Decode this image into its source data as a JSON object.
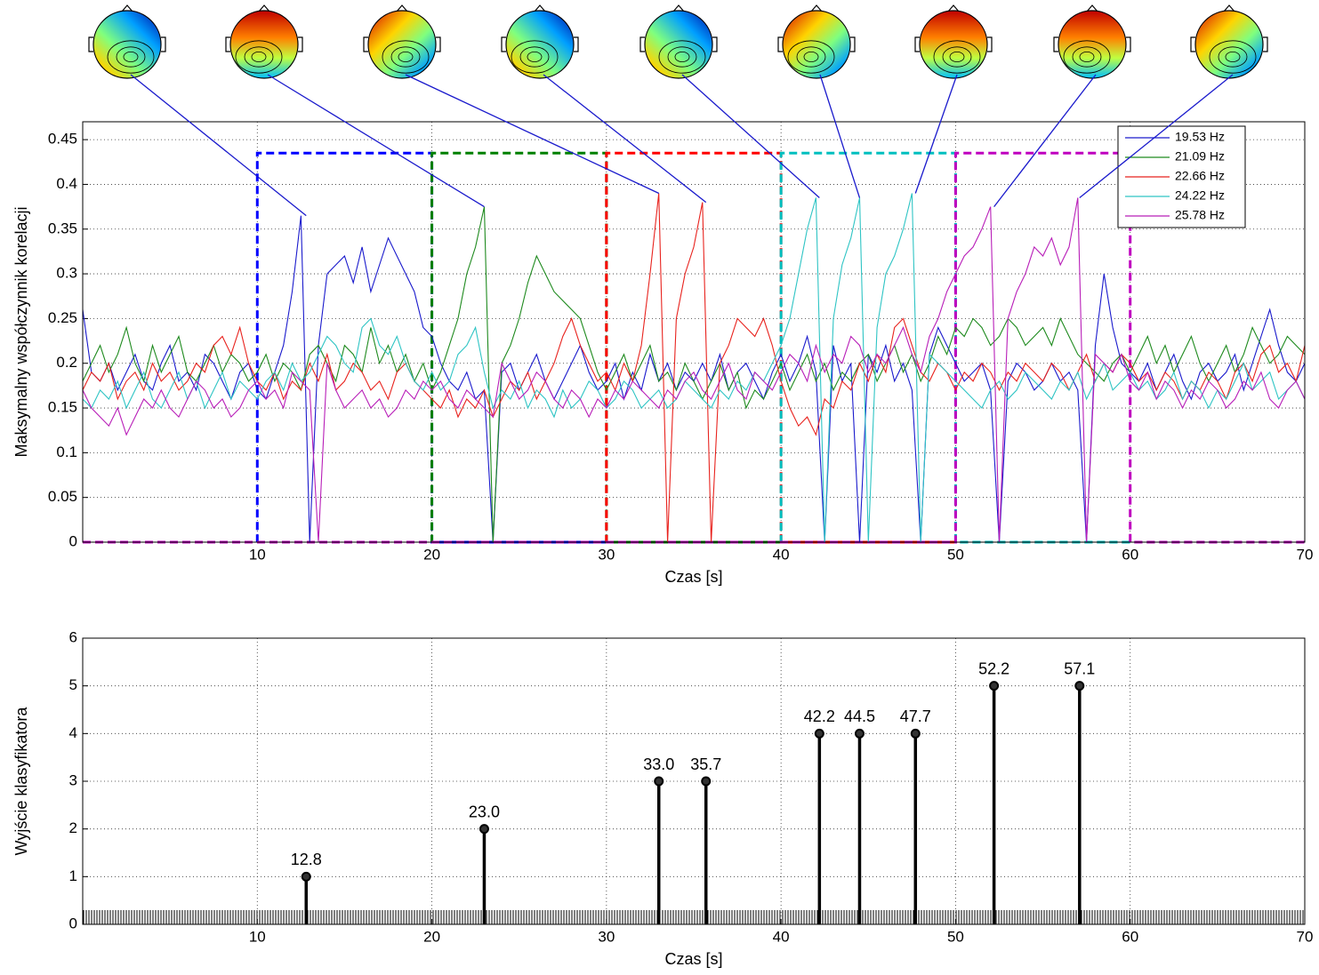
{
  "chart_data": [
    {
      "type": "line",
      "xlabel": "Czas [s]",
      "ylabel": "Maksymalny współczynnik korelacji",
      "xlim": [
        0,
        70
      ],
      "xticks": [
        10,
        20,
        30,
        40,
        50,
        60,
        70
      ],
      "ylim": [
        0,
        0.47
      ],
      "yticks": [
        0,
        0.05,
        0.1,
        0.15,
        0.2,
        0.25,
        0.3,
        0.35,
        0.4,
        0.45
      ],
      "grid": true,
      "legend": "top-right",
      "x": [
        0,
        0.5,
        1,
        1.5,
        2,
        2.5,
        3,
        3.5,
        4,
        4.5,
        5,
        5.5,
        6,
        6.5,
        7,
        7.5,
        8,
        8.5,
        9,
        9.5,
        10,
        10.5,
        11,
        11.5,
        12,
        12.5,
        13,
        13.5,
        14,
        14.5,
        15,
        15.5,
        16,
        16.5,
        17,
        17.5,
        18,
        18.5,
        19,
        19.5,
        20,
        20.5,
        21,
        21.5,
        22,
        22.5,
        23,
        23.5,
        24,
        24.5,
        25,
        25.5,
        26,
        26.5,
        27,
        27.5,
        28,
        28.5,
        29,
        29.5,
        30,
        30.5,
        31,
        31.5,
        32,
        32.5,
        33,
        33.5,
        34,
        34.5,
        35,
        35.5,
        36,
        36.5,
        37,
        37.5,
        38,
        38.5,
        39,
        39.5,
        40,
        40.5,
        41,
        41.5,
        42,
        42.5,
        43,
        43.5,
        44,
        44.5,
        45,
        45.5,
        46,
        46.5,
        47,
        47.5,
        48,
        48.5,
        49,
        49.5,
        50,
        50.5,
        51,
        51.5,
        52,
        52.5,
        53,
        53.5,
        54,
        54.5,
        55,
        55.5,
        56,
        56.5,
        57,
        57.5,
        58,
        58.5,
        59,
        59.5,
        60,
        60.5,
        61,
        61.5,
        62,
        62.5,
        63,
        63.5,
        64,
        64.5,
        65,
        65.5,
        66,
        66.5,
        67,
        67.5,
        68,
        68.5,
        69,
        69.5,
        70
      ],
      "series": [
        {
          "name": "19.53 Hz",
          "color": "#1a1acc",
          "values": [
            0.26,
            0.19,
            0.18,
            0.2,
            0.17,
            0.19,
            0.21,
            0.18,
            0.17,
            0.2,
            0.22,
            0.18,
            0.19,
            0.17,
            0.21,
            0.2,
            0.18,
            0.16,
            0.19,
            0.2,
            0.17,
            0.16,
            0.19,
            0.22,
            0.28,
            0.365,
            0,
            0.22,
            0.3,
            0.31,
            0.32,
            0.29,
            0.33,
            0.28,
            0.31,
            0.34,
            0.32,
            0.3,
            0.28,
            0.24,
            0.23,
            0.2,
            0.18,
            0.17,
            0.19,
            0.16,
            0.17,
            0,
            0.19,
            0.2,
            0.17,
            0.19,
            0.21,
            0.18,
            0.16,
            0.18,
            0.2,
            0.22,
            0.19,
            0.17,
            0.18,
            0.2,
            0.16,
            0.19,
            0.17,
            0.21,
            0.18,
            0.2,
            0.17,
            0.19,
            0.18,
            0.2,
            0.18,
            0.21,
            0.17,
            0.19,
            0.2,
            0.18,
            0.16,
            0.19,
            0.21,
            0.18,
            0.2,
            0.23,
            0.19,
            0,
            0.22,
            0.18,
            0.2,
            0,
            0.21,
            0.19,
            0.22,
            0.18,
            0.2,
            0.17,
            0,
            0.21,
            0.24,
            0.22,
            0.2,
            0.18,
            0.19,
            0.2,
            0.17,
            0,
            0.18,
            0.2,
            0.19,
            0.17,
            0.18,
            0.2,
            0.18,
            0.19,
            0.17,
            0,
            0.22,
            0.3,
            0.24,
            0.2,
            0.19,
            0.18,
            0.2,
            0.17,
            0.19,
            0.21,
            0.18,
            0.16,
            0.19,
            0.2,
            0.18,
            0.19,
            0.21,
            0.17,
            0.2,
            0.23,
            0.26,
            0.22,
            0.19,
            0.18,
            0.2
          ]
        },
        {
          "name": "21.09 Hz",
          "color": "#1e8a1e",
          "values": [
            0.18,
            0.2,
            0.22,
            0.19,
            0.21,
            0.24,
            0.2,
            0.18,
            0.22,
            0.19,
            0.21,
            0.23,
            0.19,
            0.18,
            0.2,
            0.22,
            0.19,
            0.21,
            0.2,
            0.18,
            0.19,
            0.21,
            0.18,
            0.2,
            0.19,
            0.17,
            0.21,
            0.22,
            0.2,
            0.18,
            0.22,
            0.21,
            0.19,
            0.24,
            0.2,
            0.22,
            0.19,
            0.21,
            0.18,
            0.2,
            0.17,
            0.19,
            0.22,
            0.25,
            0.3,
            0.33,
            0.375,
            0,
            0.2,
            0.22,
            0.25,
            0.29,
            0.32,
            0.3,
            0.28,
            0.27,
            0.26,
            0.25,
            0.22,
            0.19,
            0.17,
            0.19,
            0.21,
            0.18,
            0.2,
            0.22,
            0.18,
            0.19,
            0.17,
            0.2,
            0.18,
            0.16,
            0.18,
            0.2,
            0.17,
            0.19,
            0.15,
            0.17,
            0.16,
            0.18,
            0.2,
            0.17,
            0.19,
            0.21,
            0.18,
            0.2,
            0.17,
            0.19,
            0.18,
            0.2,
            0.21,
            0.18,
            0.2,
            0.22,
            0.19,
            0.21,
            0.18,
            0.2,
            0.23,
            0.21,
            0.24,
            0.23,
            0.25,
            0.24,
            0.22,
            0.23,
            0.25,
            0.24,
            0.22,
            0.23,
            0.24,
            0.22,
            0.25,
            0.23,
            0.21,
            0.2,
            0.19,
            0.18,
            0.2,
            0.21,
            0.19,
            0.21,
            0.23,
            0.2,
            0.22,
            0.19,
            0.21,
            0.23,
            0.2,
            0.18,
            0.2,
            0.22,
            0.19,
            0.21,
            0.24,
            0.22,
            0.2,
            0.21,
            0.23,
            0.22,
            0.21
          ]
        },
        {
          "name": "22.66 Hz",
          "color": "#e8231e",
          "values": [
            0.17,
            0.19,
            0.18,
            0.2,
            0.16,
            0.18,
            0.19,
            0.17,
            0.2,
            0.18,
            0.19,
            0.17,
            0.18,
            0.2,
            0.19,
            0.22,
            0.23,
            0.21,
            0.24,
            0.2,
            0.18,
            0.17,
            0.19,
            0.16,
            0.18,
            0.17,
            0.2,
            0.18,
            0.21,
            0.17,
            0.18,
            0.2,
            0.19,
            0.17,
            0.18,
            0.16,
            0.19,
            0.2,
            0.18,
            0.17,
            0.16,
            0.15,
            0.17,
            0.14,
            0.16,
            0.15,
            0.17,
            0.14,
            0.16,
            0.18,
            0.17,
            0.19,
            0.16,
            0.18,
            0.2,
            0.23,
            0.25,
            0.22,
            0.2,
            0.18,
            0.19,
            0.17,
            0.2,
            0.18,
            0.22,
            0.3,
            0.39,
            0,
            0.25,
            0.3,
            0.33,
            0.38,
            0,
            0.2,
            0.22,
            0.25,
            0.24,
            0.23,
            0.25,
            0.22,
            0.18,
            0.15,
            0.13,
            0.14,
            0.12,
            0.16,
            0.15,
            0.18,
            0.17,
            0.2,
            0.18,
            0.21,
            0.19,
            0.24,
            0.25,
            0.22,
            0.19,
            0.18,
            0.2,
            0.19,
            0.17,
            0.19,
            0.18,
            0.2,
            0.19,
            0.17,
            0.19,
            0.18,
            0.2,
            0.19,
            0.18,
            0.2,
            0.19,
            0.17,
            0.19,
            0.21,
            0.18,
            0.2,
            0.19,
            0.21,
            0.2,
            0.18,
            0.19,
            0.17,
            0.19,
            0.18,
            0.16,
            0.18,
            0.17,
            0.19,
            0.18,
            0.16,
            0.19,
            0.2,
            0.18,
            0.21,
            0.22,
            0.19,
            0.2,
            0.18,
            0.22
          ]
        },
        {
          "name": "24.22 Hz",
          "color": "#2ec4c4",
          "values": [
            0.16,
            0.15,
            0.17,
            0.16,
            0.18,
            0.15,
            0.17,
            0.19,
            0.16,
            0.15,
            0.17,
            0.19,
            0.16,
            0.18,
            0.15,
            0.17,
            0.19,
            0.16,
            0.18,
            0.17,
            0.16,
            0.18,
            0.19,
            0.17,
            0.2,
            0.18,
            0.19,
            0.21,
            0.23,
            0.22,
            0.2,
            0.19,
            0.24,
            0.25,
            0.22,
            0.21,
            0.23,
            0.2,
            0.18,
            0.17,
            0.19,
            0.17,
            0.18,
            0.21,
            0.22,
            0.24,
            0.19,
            0.15,
            0.17,
            0.16,
            0.18,
            0.15,
            0.17,
            0.16,
            0.14,
            0.17,
            0.15,
            0.16,
            0.18,
            0.17,
            0.15,
            0.16,
            0.18,
            0.17,
            0.15,
            0.16,
            0.17,
            0.15,
            0.16,
            0.18,
            0.17,
            0.16,
            0.15,
            0.17,
            0.16,
            0.18,
            0.17,
            0.19,
            0.18,
            0.2,
            0.22,
            0.25,
            0.3,
            0.35,
            0.385,
            0,
            0.25,
            0.31,
            0.34,
            0.385,
            0,
            0.24,
            0.3,
            0.32,
            0.35,
            0.39,
            0,
            0.21,
            0.2,
            0.19,
            0.18,
            0.17,
            0.16,
            0.15,
            0.17,
            0.18,
            0.16,
            0.17,
            0.19,
            0.18,
            0.17,
            0.16,
            0.18,
            0.17,
            0.19,
            0.16,
            0.18,
            0.2,
            0.17,
            0.18,
            0.19,
            0.17,
            0.18,
            0.16,
            0.17,
            0.19,
            0.16,
            0.18,
            0.17,
            0.15,
            0.17,
            0.16,
            0.18,
            0.2,
            0.17,
            0.18,
            0.19,
            0.16,
            0.17,
            0.18,
            0.16
          ]
        },
        {
          "name": "25.78 Hz",
          "color": "#b81eb8",
          "values": [
            0.17,
            0.15,
            0.14,
            0.13,
            0.15,
            0.12,
            0.14,
            0.16,
            0.15,
            0.17,
            0.15,
            0.14,
            0.16,
            0.18,
            0.17,
            0.15,
            0.16,
            0.14,
            0.15,
            0.17,
            0.18,
            0.16,
            0.17,
            0.15,
            0.19,
            0.18,
            0.17,
            0,
            0.2,
            0.17,
            0.15,
            0.16,
            0.17,
            0.15,
            0.16,
            0.14,
            0.15,
            0.17,
            0.16,
            0.18,
            0.17,
            0.18,
            0.16,
            0.15,
            0.17,
            0.16,
            0.15,
            0.14,
            0.2,
            0.18,
            0.16,
            0.17,
            0.19,
            0.18,
            0.16,
            0.15,
            0.17,
            0.16,
            0.14,
            0.16,
            0.15,
            0.17,
            0.16,
            0.18,
            0.17,
            0.16,
            0.15,
            0.17,
            0.16,
            0.18,
            0.19,
            0.17,
            0.16,
            0.18,
            0.2,
            0.17,
            0.16,
            0.19,
            0.18,
            0.17,
            0.19,
            0.21,
            0.2,
            0.18,
            0.22,
            0.19,
            0.21,
            0.2,
            0.23,
            0.22,
            0.19,
            0.21,
            0.2,
            0.22,
            0.24,
            0.21,
            0.19,
            0.23,
            0.25,
            0.28,
            0.3,
            0.32,
            0.33,
            0.35,
            0.375,
            0,
            0.25,
            0.28,
            0.3,
            0.33,
            0.32,
            0.34,
            0.31,
            0.33,
            0.385,
            0,
            0.21,
            0.2,
            0.19,
            0.21,
            0.18,
            0.17,
            0.19,
            0.16,
            0.18,
            0.17,
            0.15,
            0.17,
            0.16,
            0.18,
            0.17,
            0.15,
            0.16,
            0.18,
            0.17,
            0.19,
            0.16,
            0.15,
            0.17,
            0.18,
            0.16
          ]
        }
      ],
      "windows": [
        {
          "start": 10,
          "end": 20,
          "value": 0.435,
          "color": "#0000ff"
        },
        {
          "start": 20,
          "end": 30,
          "value": 0.435,
          "color": "#008000"
        },
        {
          "start": 30,
          "end": 40,
          "value": 0.435,
          "color": "#ff0000"
        },
        {
          "start": 40,
          "end": 50,
          "value": 0.435,
          "color": "#00bfbf"
        },
        {
          "start": 50,
          "end": 60,
          "value": 0.435,
          "color": "#bf00bf"
        }
      ],
      "peaks": [
        {
          "x": 12.8,
          "value": 0.365
        },
        {
          "x": 23.0,
          "value": 0.375
        },
        {
          "x": 33.0,
          "value": 0.39
        },
        {
          "x": 35.7,
          "value": 0.38
        },
        {
          "x": 42.2,
          "value": 0.385
        },
        {
          "x": 44.5,
          "value": 0.385
        },
        {
          "x": 47.7,
          "value": 0.39
        },
        {
          "x": 52.2,
          "value": 0.375
        },
        {
          "x": 57.1,
          "value": 0.385
        }
      ]
    },
    {
      "type": "stem",
      "xlabel": "Czas [s]",
      "ylabel": "Wyjście klasyfikatora",
      "xlim": [
        0,
        70
      ],
      "xticks": [
        10,
        20,
        30,
        40,
        50,
        60,
        70
      ],
      "ylim": [
        0,
        6
      ],
      "yticks": [
        0,
        1,
        2,
        3,
        4,
        5,
        6
      ],
      "grid": true,
      "color": "#000000",
      "x": [
        12.8,
        23.0,
        33.0,
        35.7,
        42.2,
        44.5,
        47.7,
        52.2,
        57.1
      ],
      "values": [
        1,
        2,
        3,
        3,
        4,
        4,
        4,
        5,
        5
      ],
      "point_labels": [
        "12.8",
        "23.0",
        "33.0",
        "35.7",
        "42.2",
        "44.5",
        "47.7",
        "52.2",
        "57.1"
      ]
    }
  ]
}
